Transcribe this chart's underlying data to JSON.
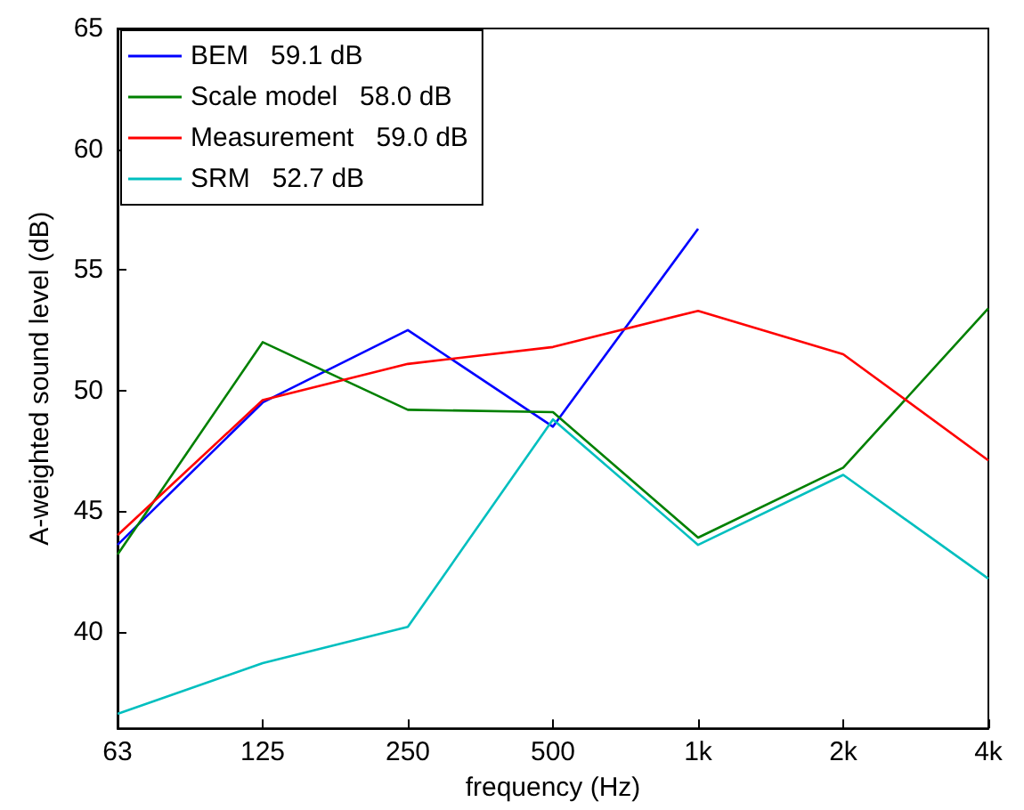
{
  "chart_data": {
    "type": "line",
    "xlabel": "frequency (Hz)",
    "ylabel": "A-weighted sound level (dB)",
    "categories": [
      "63",
      "125",
      "250",
      "500",
      "1k",
      "2k",
      "4k"
    ],
    "series": [
      {
        "name": "BEM   59.1 dB",
        "color": "#0000ff",
        "values": [
          43.6,
          49.5,
          52.5,
          48.5,
          56.7,
          null,
          null
        ]
      },
      {
        "name": "Scale model   58.0 dB",
        "color": "#008000",
        "values": [
          43.2,
          52.0,
          49.2,
          49.1,
          43.9,
          46.8,
          53.4
        ]
      },
      {
        "name": "Measurement   59.0 dB",
        "color": "#ff0000",
        "values": [
          44.0,
          49.6,
          51.1,
          51.8,
          53.3,
          51.5,
          47.1
        ]
      },
      {
        "name": "SRM   52.7 dB",
        "color": "#00bfbf",
        "values": [
          36.6,
          38.7,
          40.2,
          48.8,
          43.6,
          46.5,
          42.2
        ]
      }
    ],
    "ylim": [
      36,
      65
    ],
    "yticks": [
      40,
      45,
      50,
      55,
      60,
      65
    ],
    "grid": false,
    "legend": "top left",
    "marker": "none",
    "line_style": "solid"
  }
}
